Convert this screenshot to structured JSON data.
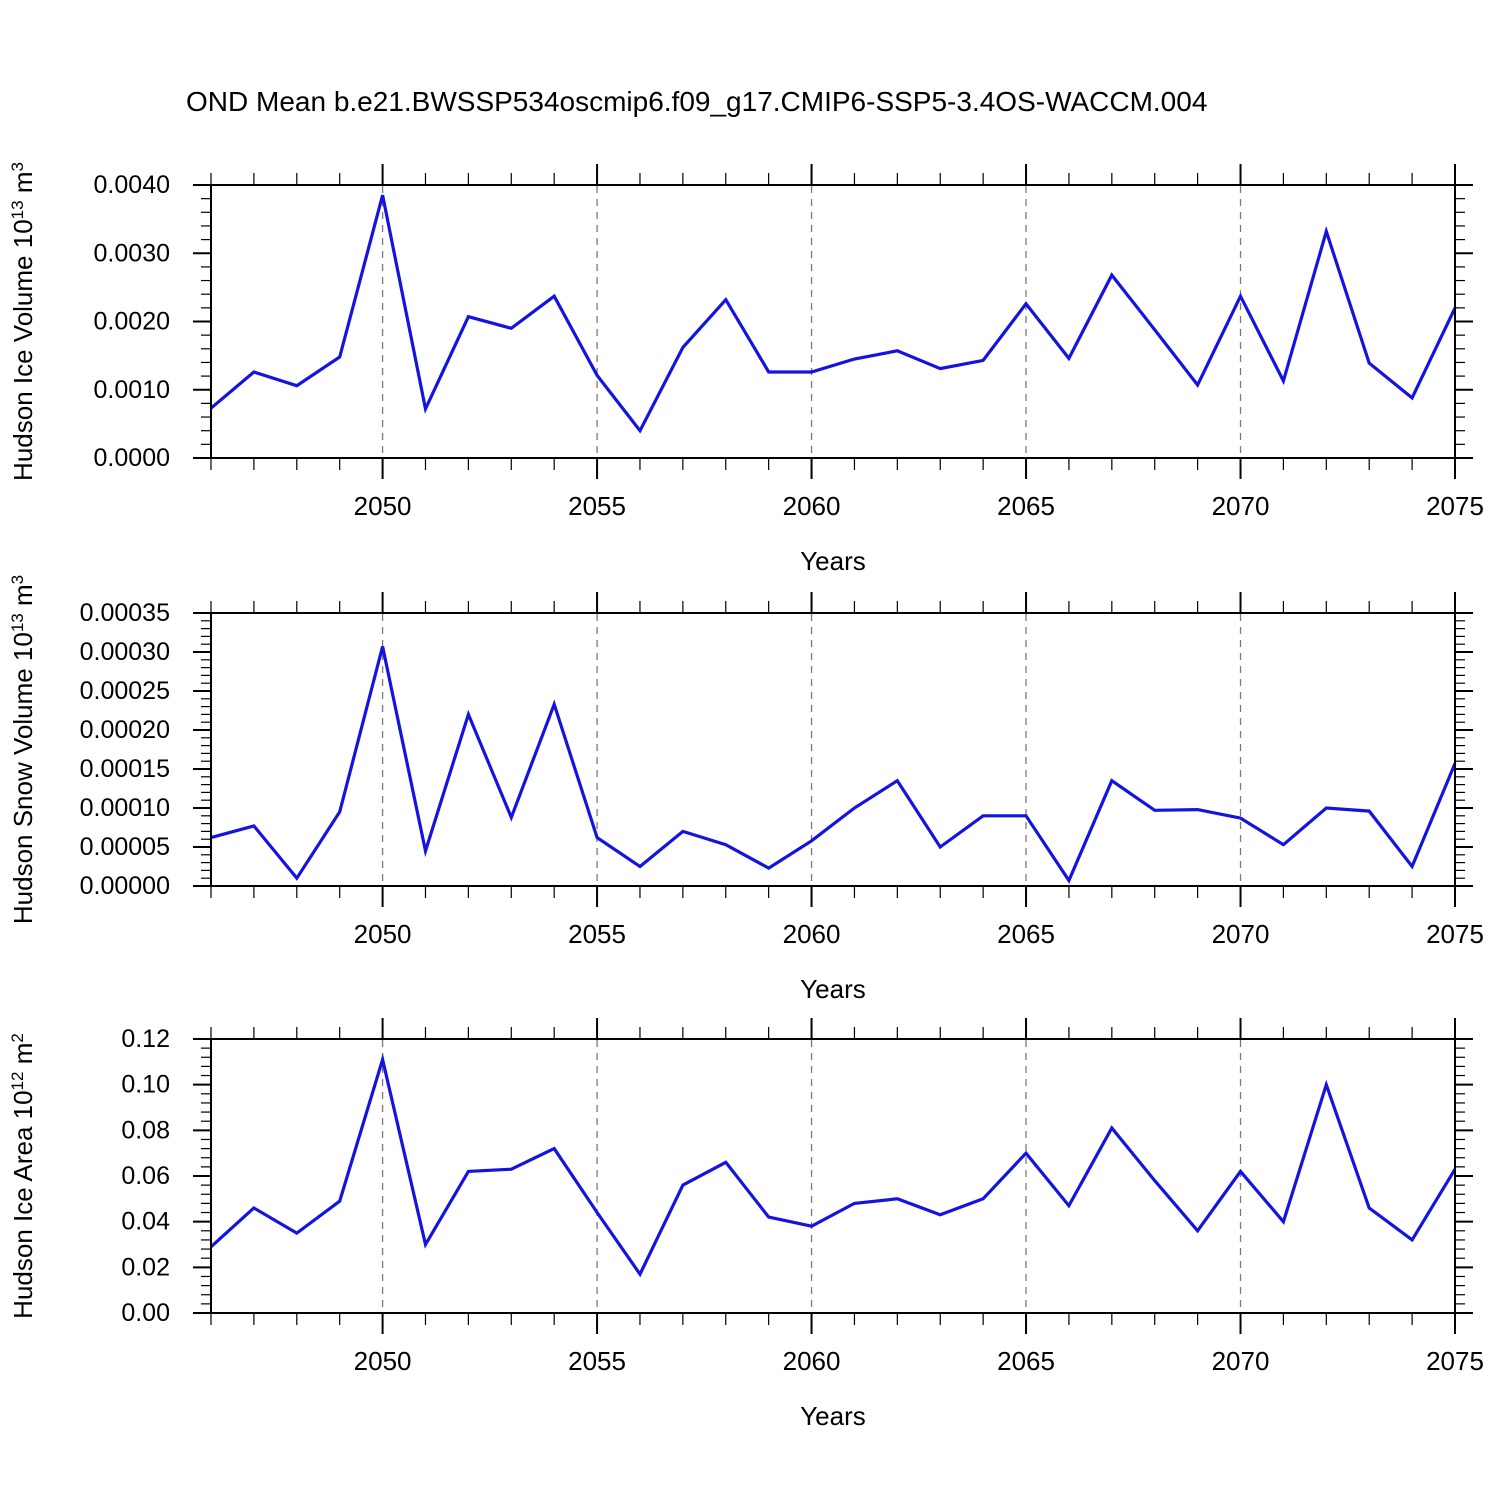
{
  "title": "OND Mean b.e21.BWSSP534oscmip6.f09_g17.CMIP6-SSP5-3.4OS-WACCM.004",
  "colors": {
    "line": "#1414e0",
    "axis": "#000000",
    "gridline": "#7a7a7a",
    "background": "#ffffff"
  },
  "x_axis": {
    "label": "Years",
    "range": [
      2046,
      2075
    ],
    "major_ticks": [
      2050,
      2055,
      2060,
      2065,
      2070,
      2075
    ],
    "major_tick_labels": [
      "2050",
      "2055",
      "2060",
      "2065",
      "2070",
      "2075"
    ],
    "minor_step": 1,
    "gridline_years": [
      2050,
      2055,
      2060,
      2065,
      2070
    ]
  },
  "chart_data": [
    {
      "type": "line",
      "panel": "hudson-ice-volume",
      "ylabel": {
        "prefix": "Hudson Ice Volume 10",
        "exp": "13",
        "unit": " m",
        "unit_exp": "3"
      },
      "ylim": [
        0,
        0.004
      ],
      "y_major_step": 0.001,
      "y_minor_step": 0.0002,
      "y_tick_labels": [
        "0.0000",
        "0.0010",
        "0.0020",
        "0.0030",
        "0.0040"
      ],
      "xlabel": "Years",
      "x": [
        2046,
        2047,
        2048,
        2049,
        2050,
        2051,
        2052,
        2053,
        2054,
        2055,
        2056,
        2057,
        2058,
        2059,
        2060,
        2061,
        2062,
        2063,
        2064,
        2065,
        2066,
        2067,
        2068,
        2069,
        2070,
        2071,
        2072,
        2073,
        2074,
        2075
      ],
      "values": [
        0.00073,
        0.00126,
        0.00106,
        0.00148,
        0.00385,
        0.00072,
        0.00207,
        0.0019,
        0.00237,
        0.00121,
        0.0004,
        0.00162,
        0.00232,
        0.00126,
        0.00126,
        0.00145,
        0.00157,
        0.00131,
        0.00143,
        0.00226,
        0.00146,
        0.00268,
        0.00188,
        0.00107,
        0.00237,
        0.00113,
        0.00332,
        0.00139,
        0.00088,
        0.0022
      ]
    },
    {
      "type": "line",
      "panel": "hudson-snow-volume",
      "ylabel": {
        "prefix": "Hudson Snow Volume 10",
        "exp": "13",
        "unit": " m",
        "unit_exp": "3"
      },
      "ylim": [
        0,
        0.00035
      ],
      "y_major_step": 5e-05,
      "y_minor_step": 1e-05,
      "y_tick_labels": [
        "0.00000",
        "0.00005",
        "0.00010",
        "0.00015",
        "0.00020",
        "0.00025",
        "0.00030",
        "0.00035"
      ],
      "xlabel": "Years",
      "x": [
        2046,
        2047,
        2048,
        2049,
        2050,
        2051,
        2052,
        2053,
        2054,
        2055,
        2056,
        2057,
        2058,
        2059,
        2060,
        2061,
        2062,
        2063,
        2064,
        2065,
        2066,
        2067,
        2068,
        2069,
        2070,
        2071,
        2072,
        2073,
        2074,
        2075
      ],
      "values": [
        6.2e-05,
        7.7e-05,
        1e-05,
        9.5e-05,
        0.000307,
        4.5e-05,
        0.00022,
        8.8e-05,
        0.000233,
        6.2e-05,
        2.5e-05,
        7e-05,
        5.3e-05,
        2.3e-05,
        5.8e-05,
        0.0001,
        0.000135,
        5e-05,
        9e-05,
        9e-05,
        7e-06,
        0.000135,
        9.7e-05,
        9.8e-05,
        8.7e-05,
        5.3e-05,
        0.0001,
        9.6e-05,
        2.5e-05,
        0.000157
      ]
    },
    {
      "type": "line",
      "panel": "hudson-ice-area",
      "ylabel": {
        "prefix": "Hudson Ice Area 10",
        "exp": "12",
        "unit": " m",
        "unit_exp": "2"
      },
      "ylim": [
        0,
        0.12
      ],
      "y_major_step": 0.02,
      "y_minor_step": 0.004,
      "y_tick_labels": [
        "0.00",
        "0.02",
        "0.04",
        "0.06",
        "0.08",
        "0.10",
        "0.12"
      ],
      "xlabel": "Years",
      "x": [
        2046,
        2047,
        2048,
        2049,
        2050,
        2051,
        2052,
        2053,
        2054,
        2055,
        2056,
        2057,
        2058,
        2059,
        2060,
        2061,
        2062,
        2063,
        2064,
        2065,
        2066,
        2067,
        2068,
        2069,
        2070,
        2071,
        2072,
        2073,
        2074,
        2075
      ],
      "values": [
        0.029,
        0.046,
        0.035,
        0.049,
        0.111,
        0.03,
        0.062,
        0.063,
        0.072,
        0.044,
        0.017,
        0.056,
        0.066,
        0.042,
        0.038,
        0.048,
        0.05,
        0.043,
        0.05,
        0.07,
        0.047,
        0.081,
        0.058,
        0.036,
        0.062,
        0.04,
        0.1,
        0.046,
        0.032,
        0.063
      ]
    }
  ]
}
